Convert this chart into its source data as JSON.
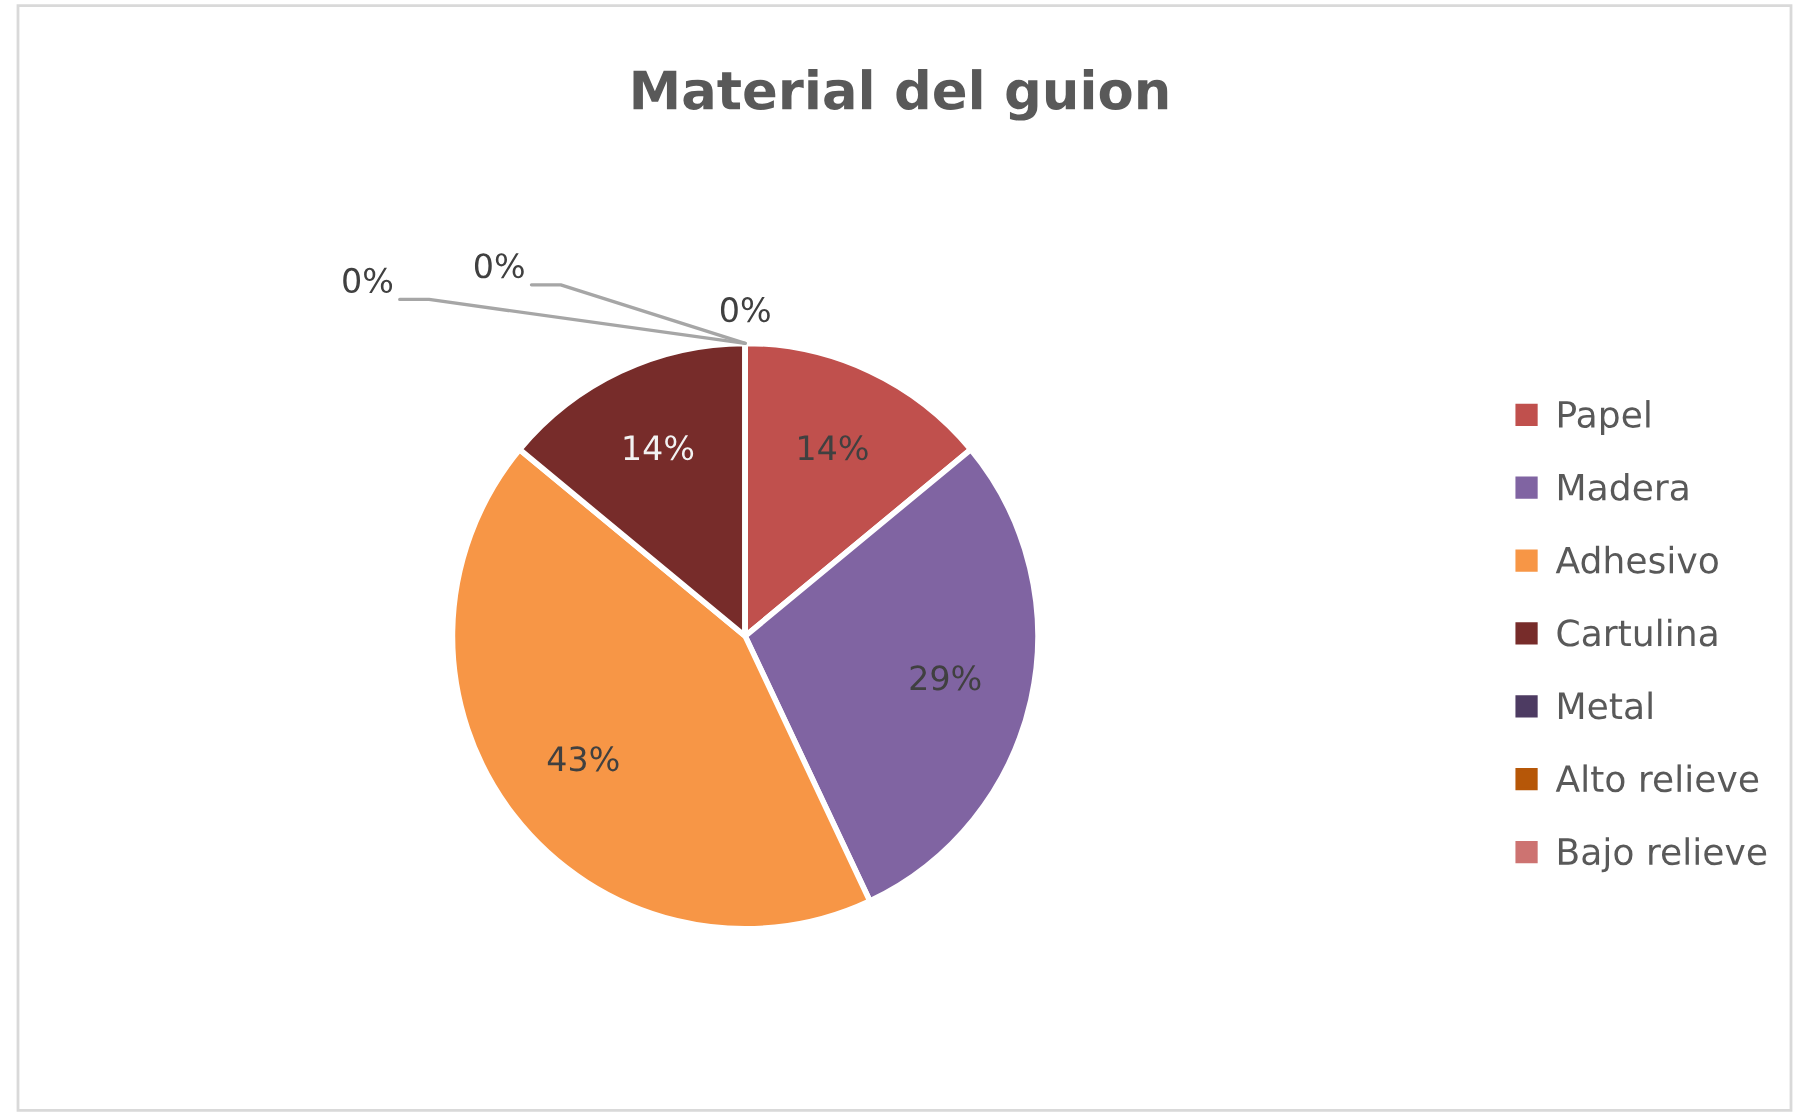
{
  "chart_data": {
    "type": "pie",
    "title": "Material del guion",
    "categories": [
      "Papel",
      "Madera",
      "Adhesivo",
      "Cartulina",
      "Metal",
      "Alto relieve",
      "Bajo relieve"
    ],
    "values": [
      14,
      29,
      43,
      14,
      0,
      0,
      0
    ],
    "colors": [
      "#c0504d",
      "#8064a2",
      "#f79646",
      "#772c2a",
      "#4d3b62",
      "#b65708",
      "#cd7371"
    ],
    "value_labels": [
      "14%",
      "29%",
      "43%",
      "14%",
      "0%",
      "0%",
      "0%"
    ],
    "legend": "right"
  }
}
